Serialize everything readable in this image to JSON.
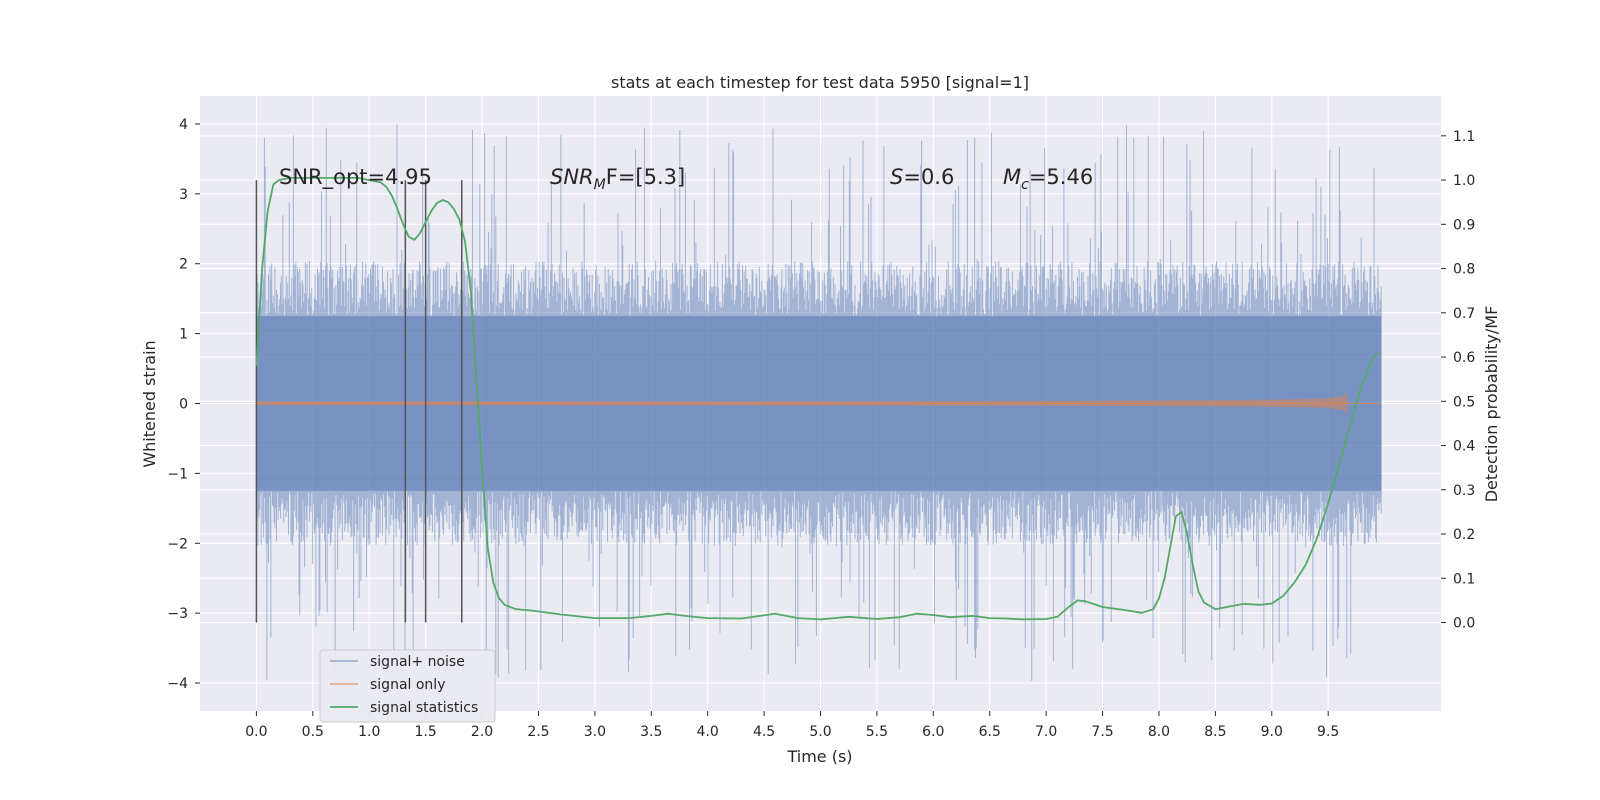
{
  "chart_data": {
    "type": "line",
    "title": "stats at each timestep for test data 5950 [signal=1]",
    "xlabel": "Time (s)",
    "ylabel_left": "Whitened strain",
    "ylabel_right": "Detection probability/MF",
    "xlim": [
      -0.5,
      10.5
    ],
    "ylim_left": [
      -4.4,
      4.4
    ],
    "ylim_right": [
      -0.2,
      1.19
    ],
    "x_ticks": [
      "0.0",
      "0.5",
      "1.0",
      "1.5",
      "2.0",
      "2.5",
      "3.0",
      "3.5",
      "4.0",
      "4.5",
      "5.0",
      "5.5",
      "6.0",
      "6.5",
      "7.0",
      "7.5",
      "8.0",
      "8.5",
      "9.0",
      "9.5"
    ],
    "y_left_ticks": [
      "4",
      "3",
      "2",
      "1",
      "0",
      "−1",
      "−2",
      "−3",
      "−4"
    ],
    "y_right_ticks": [
      "1.1",
      "1.0",
      "0.9",
      "0.8",
      "0.7",
      "0.6",
      "0.5",
      "0.4",
      "0.3",
      "0.2",
      "0.1",
      "0.0"
    ],
    "grid": true,
    "legend_position": "lower-left",
    "colors": {
      "background": "#eaeaf2",
      "grid": "#ffffff",
      "signal_noise": "#4c72b0",
      "signal_only": "#dd8452",
      "statistics": "#55a868",
      "markers": "#555555"
    },
    "series": [
      {
        "name": "signal+ noise",
        "kind": "dense_noise",
        "x_range": [
          0.0,
          9.97
        ],
        "typical_amplitude": 1.25,
        "envelope_amplitude": 2.0,
        "spike_range": [
          -4.0,
          4.0
        ]
      },
      {
        "name": "signal only",
        "kind": "chirp",
        "x_range": [
          0.0,
          9.97
        ],
        "peak_time": 9.67,
        "peak_amplitude": 0.5
      },
      {
        "name": "signal statistics",
        "kind": "curve",
        "x": [
          0.0,
          0.05,
          0.1,
          0.15,
          0.2,
          0.3,
          0.4,
          0.5,
          0.7,
          0.9,
          1.0,
          1.1,
          1.15,
          1.2,
          1.25,
          1.3,
          1.35,
          1.4,
          1.45,
          1.5,
          1.55,
          1.6,
          1.65,
          1.7,
          1.75,
          1.8,
          1.85,
          1.9,
          1.95,
          2.0,
          2.05,
          2.1,
          2.15,
          2.2,
          2.3,
          2.4,
          2.5,
          2.7,
          3.0,
          3.3,
          3.5,
          3.65,
          3.8,
          4.0,
          4.3,
          4.6,
          4.8,
          5.0,
          5.25,
          5.5,
          5.7,
          5.85,
          6.0,
          6.15,
          6.35,
          6.5,
          6.65,
          6.8,
          7.0,
          7.1,
          7.2,
          7.28,
          7.35,
          7.5,
          7.7,
          7.85,
          7.95,
          8.0,
          8.05,
          8.1,
          8.15,
          8.2,
          8.25,
          8.3,
          8.35,
          8.4,
          8.5,
          8.6,
          8.75,
          8.9,
          9.0,
          9.1,
          9.2,
          9.3,
          9.4,
          9.5,
          9.6,
          9.7,
          9.8,
          9.9,
          9.95
        ],
        "y": [
          0.58,
          0.8,
          0.93,
          0.99,
          1.0,
          1.005,
          1.005,
          1.005,
          1.005,
          1.005,
          1.0,
          0.995,
          0.985,
          0.965,
          0.935,
          0.9,
          0.872,
          0.865,
          0.88,
          0.905,
          0.93,
          0.948,
          0.955,
          0.95,
          0.935,
          0.91,
          0.86,
          0.75,
          0.55,
          0.35,
          0.17,
          0.09,
          0.055,
          0.04,
          0.03,
          0.028,
          0.025,
          0.018,
          0.01,
          0.01,
          0.015,
          0.02,
          0.015,
          0.01,
          0.009,
          0.02,
          0.01,
          0.007,
          0.013,
          0.008,
          0.012,
          0.02,
          0.017,
          0.012,
          0.015,
          0.01,
          0.009,
          0.007,
          0.008,
          0.013,
          0.035,
          0.05,
          0.048,
          0.035,
          0.028,
          0.022,
          0.03,
          0.055,
          0.1,
          0.17,
          0.24,
          0.25,
          0.2,
          0.13,
          0.07,
          0.045,
          0.03,
          0.035,
          0.042,
          0.04,
          0.043,
          0.06,
          0.09,
          0.13,
          0.19,
          0.27,
          0.36,
          0.45,
          0.54,
          0.6,
          0.61
        ]
      }
    ],
    "vertical_markers": [
      0.0,
      1.32,
      1.5,
      1.82
    ],
    "annotations": {
      "snr_opt": "SNR_opt=4.95",
      "snr_mf_main": "SNR",
      "snr_mf_sub": "M",
      "snr_mf_tail": "F=[5.3]",
      "s_var": "S",
      "s_val": "=0.6",
      "mc_main": "M",
      "mc_sub": "c",
      "mc_val": "=5.46"
    }
  }
}
